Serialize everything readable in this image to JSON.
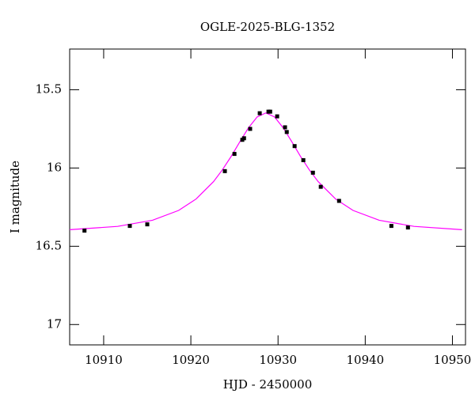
{
  "chart_data": {
    "type": "lightcurve",
    "title": "OGLE-2025-BLG-1352",
    "x_label": "HJD - 2450000",
    "y_label": "I magnitude",
    "xlim": [
      10906.1,
      10951.5
    ],
    "ylim": [
      17.13,
      15.24
    ],
    "y_inverted": true,
    "xticks": [
      10910,
      10920,
      10930,
      10940,
      10950
    ],
    "yticks": [
      15.5,
      16,
      16.5,
      17
    ],
    "observations": {
      "color": "#000000",
      "x": [
        10907.8,
        10913.0,
        10915.0,
        10923.9,
        10925.0,
        10925.9,
        10926.1,
        10926.8,
        10927.9,
        10928.9,
        10929.1,
        10929.9,
        10930.8,
        10931.0,
        10931.9,
        10932.9,
        10934.0,
        10934.9,
        10937.0,
        10943.0,
        10944.9
      ],
      "values": [
        16.4,
        16.37,
        16.36,
        16.02,
        15.91,
        15.82,
        15.81,
        15.75,
        15.65,
        15.64,
        15.64,
        15.67,
        15.74,
        15.77,
        15.86,
        15.95,
        16.03,
        16.12,
        16.21,
        16.37,
        16.38
      ]
    },
    "model": {
      "color": "#ff00ff",
      "x": [
        10906.1,
        10911.6,
        10915.6,
        10918.6,
        10920.6,
        10922.6,
        10923.6,
        10924.6,
        10925.6,
        10926.6,
        10927.6,
        10928.6,
        10929.6,
        10930.6,
        10931.6,
        10932.6,
        10933.6,
        10934.6,
        10936.6,
        10938.6,
        10941.6,
        10945.6,
        10951.1
      ],
      "values": [
        16.394,
        16.373,
        16.334,
        16.271,
        16.198,
        16.087,
        16.013,
        15.928,
        15.834,
        15.744,
        15.674,
        15.648,
        15.674,
        15.744,
        15.834,
        15.928,
        16.013,
        16.087,
        16.198,
        16.271,
        16.334,
        16.373,
        16.394
      ]
    }
  }
}
